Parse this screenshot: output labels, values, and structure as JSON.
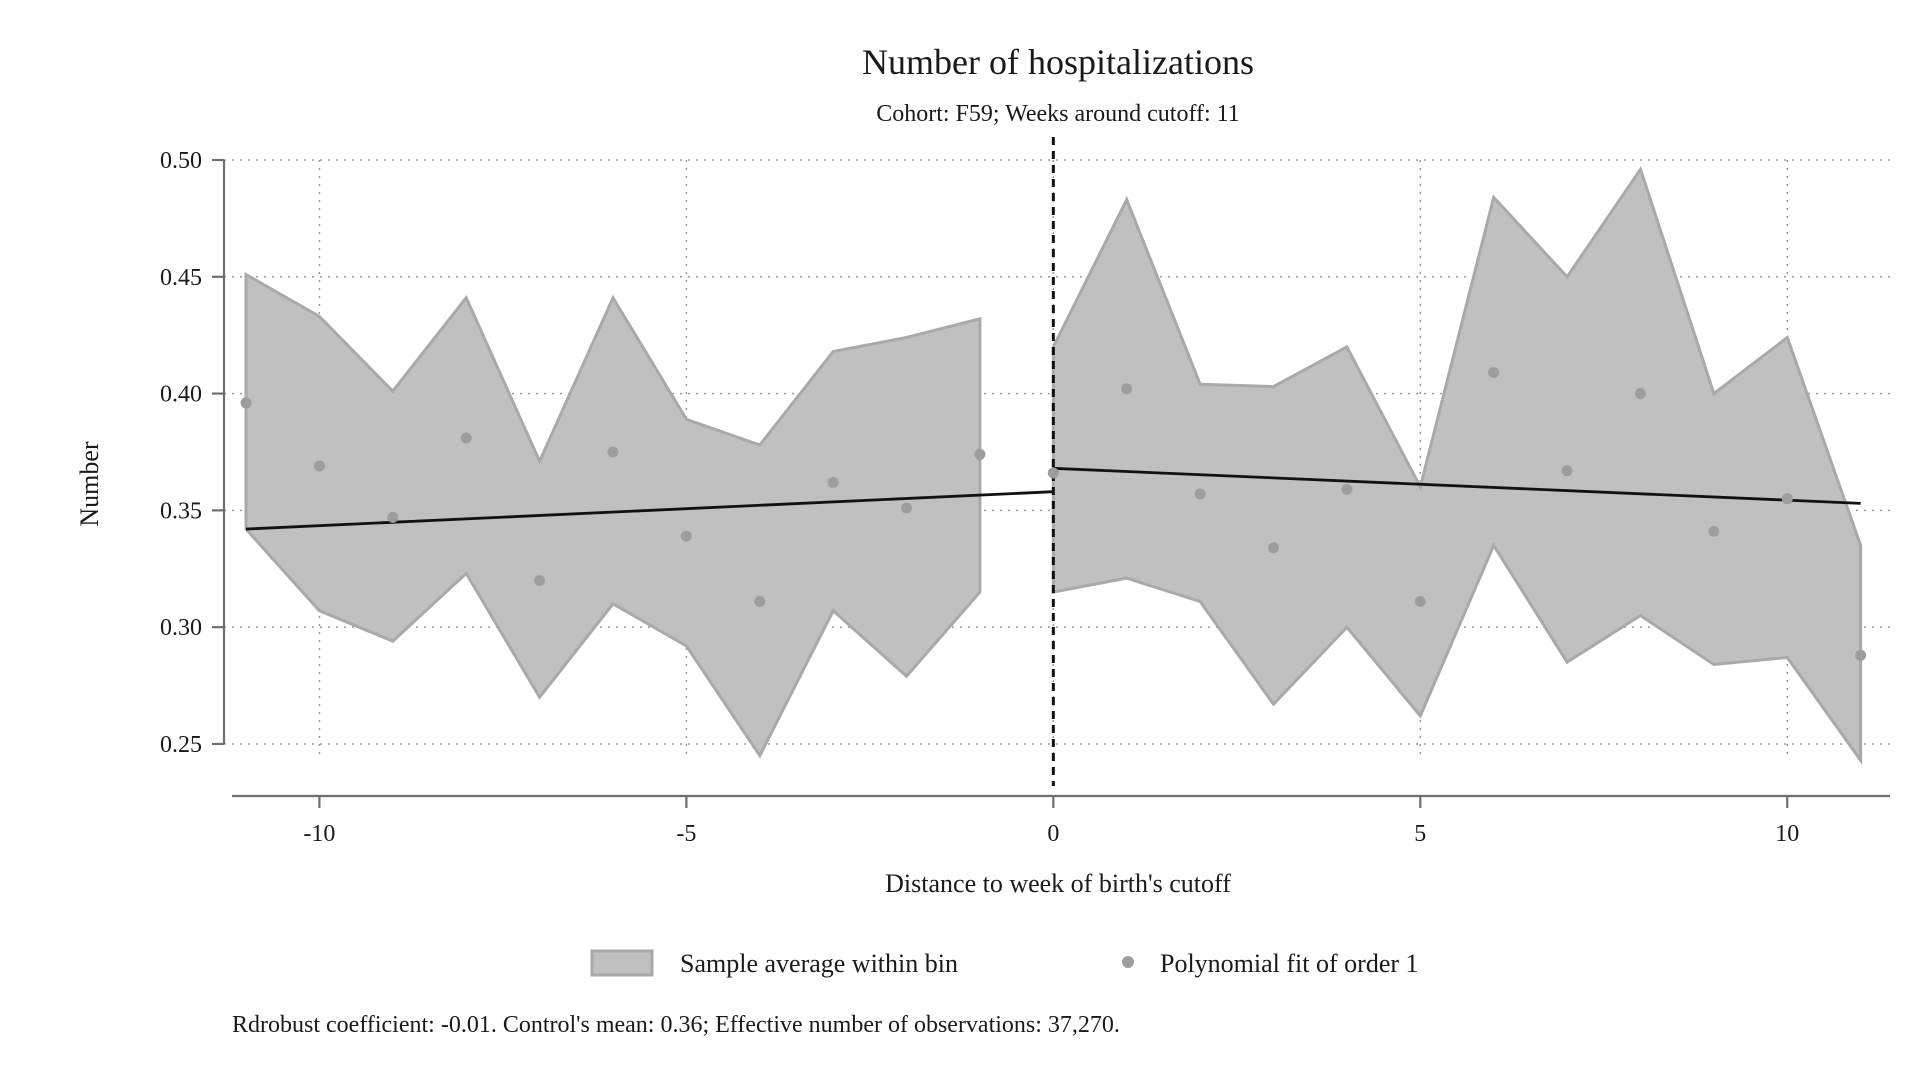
{
  "chart_data": {
    "type": "line",
    "title": "Number of hospitalizations",
    "subtitle": "Cohort: F59; Weeks around cutoff: 11",
    "xlabel": "Distance to week of birth's cutoff",
    "ylabel": "Number",
    "xlim": [
      -11.3,
      11.4
    ],
    "ylim": [
      0.232,
      0.5
    ],
    "x_ticks": [
      -10,
      -5,
      0,
      5,
      10
    ],
    "x_tick_labels": [
      "-10",
      "-5",
      "0",
      "5",
      "10"
    ],
    "y_ticks": [
      0.25,
      0.3,
      0.35,
      0.4,
      0.45,
      0.5
    ],
    "y_tick_labels": [
      "0.25",
      "0.30",
      "0.35",
      "0.40",
      "0.45",
      "0.50"
    ],
    "grid": true,
    "cutoff_x": 0,
    "ci_band": {
      "name": "Sample average within bin",
      "left": {
        "x": [
          -11,
          -10,
          -9,
          -8,
          -7,
          -6,
          -5,
          -4,
          -3,
          -2,
          -1
        ],
        "upper": [
          0.451,
          0.433,
          0.401,
          0.441,
          0.371,
          0.441,
          0.389,
          0.378,
          0.418,
          0.424,
          0.432
        ],
        "lower": [
          0.342,
          0.307,
          0.294,
          0.323,
          0.27,
          0.31,
          0.292,
          0.245,
          0.307,
          0.279,
          0.315
        ]
      },
      "right": {
        "x": [
          0,
          1,
          2,
          3,
          4,
          5,
          6,
          7,
          8,
          9,
          10,
          11
        ],
        "upper": [
          0.42,
          0.483,
          0.404,
          0.403,
          0.42,
          0.36,
          0.484,
          0.45,
          0.496,
          0.4,
          0.424,
          0.335
        ],
        "lower": [
          0.315,
          0.321,
          0.311,
          0.267,
          0.3,
          0.262,
          0.335,
          0.285,
          0.305,
          0.284,
          0.287,
          0.243
        ]
      }
    },
    "points": {
      "name": "Polynomial fit of order 1",
      "x": [
        -11,
        -10,
        -9,
        -8,
        -7,
        -6,
        -5,
        -4,
        -3,
        -2,
        -1,
        0,
        1,
        2,
        3,
        4,
        5,
        6,
        7,
        8,
        9,
        10,
        11
      ],
      "y": [
        0.396,
        0.369,
        0.347,
        0.381,
        0.32,
        0.375,
        0.339,
        0.311,
        0.362,
        0.351,
        0.374,
        0.366,
        0.402,
        0.357,
        0.334,
        0.359,
        0.311,
        0.409,
        0.367,
        0.4,
        0.341,
        0.355,
        0.288
      ]
    },
    "fit_lines": [
      {
        "x": [
          -11,
          0
        ],
        "y": [
          0.342,
          0.358
        ]
      },
      {
        "x": [
          0,
          11
        ],
        "y": [
          0.368,
          0.353
        ]
      }
    ],
    "legend": {
      "placement": "bottom",
      "entries": [
        "Sample average within bin",
        "Polynomial fit of order 1"
      ]
    },
    "note": "Rdrobust coefficient: -0.01. Control's mean: 0.36; Effective number of observations: 37,270.",
    "colors": {
      "band_fill": "#c0c0c0",
      "band_edge": "#a9a9a9",
      "points": "#9d9d9d",
      "fit_line": "#111111"
    }
  }
}
